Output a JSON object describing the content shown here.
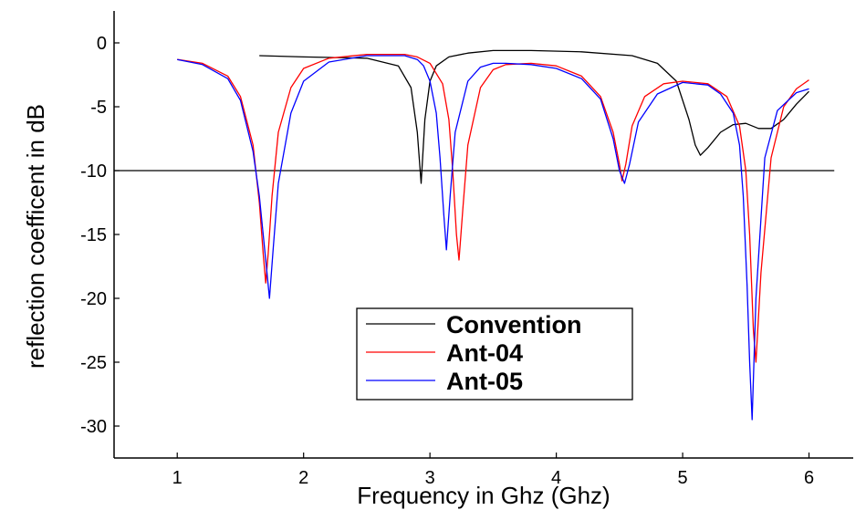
{
  "chart_data": {
    "type": "line",
    "title": "",
    "xlabel": "Frequency in Ghz (Ghz)",
    "ylabel": "reflection coefficent in dB",
    "xlim": [
      0.5,
      6.35
    ],
    "ylim": [
      -32.5,
      2.5
    ],
    "xticks": [
      "1",
      "2",
      "3",
      "4",
      "5",
      "6"
    ],
    "yticks": [
      "0",
      "-5",
      "-10",
      "-15",
      "-20",
      "-25",
      "-30"
    ],
    "grid": false,
    "legend_position": "bottom-center",
    "reference_line": {
      "y": -10,
      "x_from": 0.5,
      "x_to": 6.2,
      "color": "#000000"
    },
    "series": [
      {
        "name": "Convention",
        "color": "#000000",
        "x": [
          1.65,
          2.0,
          2.5,
          2.75,
          2.85,
          2.9,
          2.93,
          2.96,
          3.0,
          3.05,
          3.15,
          3.3,
          3.5,
          3.8,
          4.2,
          4.6,
          4.8,
          4.95,
          5.05,
          5.1,
          5.14,
          5.2,
          5.3,
          5.4,
          5.5,
          5.6,
          5.7,
          5.8,
          5.9,
          6.0
        ],
        "y": [
          -1.0,
          -1.1,
          -1.2,
          -1.8,
          -3.5,
          -7.0,
          -11.0,
          -6.0,
          -3.0,
          -1.8,
          -1.1,
          -0.8,
          -0.6,
          -0.6,
          -0.7,
          -1.0,
          -1.6,
          -3.0,
          -6.0,
          -8.0,
          -8.8,
          -8.2,
          -7.0,
          -6.4,
          -6.3,
          -6.7,
          -6.7,
          -6.0,
          -4.8,
          -3.8
        ]
      },
      {
        "name": "Ant-04",
        "color": "#ff0000",
        "x": [
          1.0,
          1.2,
          1.4,
          1.5,
          1.6,
          1.65,
          1.68,
          1.7,
          1.72,
          1.75,
          1.8,
          1.9,
          2.0,
          2.2,
          2.5,
          2.8,
          2.9,
          3.0,
          3.1,
          3.15,
          3.18,
          3.21,
          3.23,
          3.26,
          3.3,
          3.4,
          3.5,
          3.6,
          3.8,
          4.0,
          4.2,
          4.35,
          4.45,
          4.5,
          4.52,
          4.55,
          4.6,
          4.7,
          4.85,
          5.0,
          5.2,
          5.35,
          5.45,
          5.5,
          5.53,
          5.56,
          5.58,
          5.62,
          5.7,
          5.8,
          5.9,
          6.0
        ],
        "y": [
          -1.3,
          -1.6,
          -2.6,
          -4.2,
          -8.0,
          -12.5,
          -16.5,
          -18.8,
          -16.5,
          -12.0,
          -7.0,
          -3.5,
          -2.0,
          -1.2,
          -0.9,
          -0.9,
          -1.1,
          -1.6,
          -3.2,
          -6.0,
          -10.0,
          -15.0,
          -17.0,
          -13.0,
          -8.0,
          -3.5,
          -2.1,
          -1.7,
          -1.6,
          -1.8,
          -2.6,
          -4.2,
          -7.0,
          -9.5,
          -10.8,
          -9.5,
          -6.5,
          -4.2,
          -3.2,
          -3.0,
          -3.2,
          -4.2,
          -6.5,
          -10.0,
          -15.0,
          -22.5,
          -25.0,
          -18.0,
          -9.0,
          -5.0,
          -3.6,
          -2.9
        ]
      },
      {
        "name": "Ant-05",
        "color": "#0000ff",
        "x": [
          1.0,
          1.2,
          1.4,
          1.5,
          1.6,
          1.65,
          1.7,
          1.73,
          1.76,
          1.8,
          1.9,
          2.0,
          2.2,
          2.5,
          2.8,
          2.9,
          2.95,
          3.0,
          3.05,
          3.08,
          3.11,
          3.13,
          3.16,
          3.2,
          3.3,
          3.4,
          3.5,
          3.6,
          3.8,
          4.0,
          4.2,
          4.35,
          4.45,
          4.5,
          4.54,
          4.58,
          4.65,
          4.8,
          5.0,
          5.2,
          5.3,
          5.4,
          5.45,
          5.48,
          5.51,
          5.53,
          5.55,
          5.58,
          5.65,
          5.75,
          5.9,
          6.0
        ],
        "y": [
          -1.3,
          -1.7,
          -2.8,
          -4.5,
          -8.5,
          -12.0,
          -17.0,
          -20.0,
          -16.0,
          -11.0,
          -5.5,
          -3.0,
          -1.5,
          -1.0,
          -1.0,
          -1.3,
          -1.8,
          -3.0,
          -5.5,
          -9.0,
          -13.5,
          -16.2,
          -12.0,
          -7.0,
          -3.0,
          -1.9,
          -1.6,
          -1.6,
          -1.7,
          -2.0,
          -2.8,
          -4.4,
          -7.5,
          -10.0,
          -11.0,
          -9.5,
          -6.2,
          -4.0,
          -3.1,
          -3.3,
          -4.0,
          -5.5,
          -8.0,
          -12.0,
          -19.0,
          -25.0,
          -29.5,
          -20.0,
          -9.0,
          -5.3,
          -3.9,
          -3.6
        ]
      }
    ]
  }
}
